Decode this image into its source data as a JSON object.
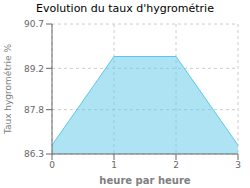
{
  "chart_data": {
    "type": "area",
    "title": "Evolution du taux d'hygrométrie",
    "xlabel": "heure par heure",
    "ylabel": "Taux hygrométrie %",
    "x": [
      0,
      1,
      2,
      3
    ],
    "values": [
      86.6,
      89.6,
      89.6,
      86.6
    ],
    "color": "#5bc8e8",
    "xlim": [
      0,
      3
    ],
    "ylim": [
      86.3,
      90.7
    ],
    "xticks": [
      0,
      1,
      2,
      3
    ],
    "yticks": [
      86.3,
      87.8,
      89.2,
      90.7
    ],
    "grid": true
  }
}
